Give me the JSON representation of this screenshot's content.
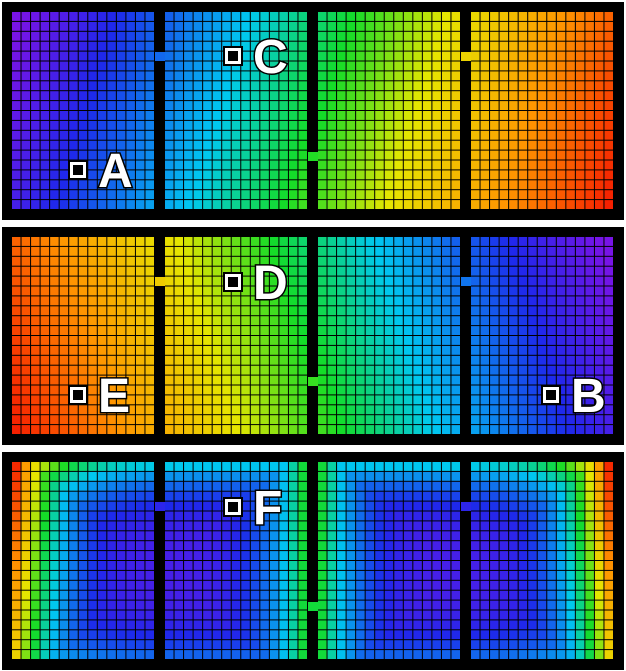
{
  "markers": [
    {
      "label": "A"
    },
    {
      "label": "B"
    },
    {
      "label": "C"
    },
    {
      "label": "D"
    },
    {
      "label": "E"
    },
    {
      "label": "F"
    }
  ],
  "rows": [
    {
      "name": "row-linear-increasing",
      "pattern": "linear-forward"
    },
    {
      "name": "row-linear-decreasing",
      "pattern": "linear-reverse"
    },
    {
      "name": "row-bowl",
      "pattern": "bowl"
    }
  ],
  "colors": {
    "background": "#ffffff",
    "frame": "#000000",
    "grid": "#000000",
    "marker_fill": "#ffffff"
  },
  "colormap": "rainbow"
}
